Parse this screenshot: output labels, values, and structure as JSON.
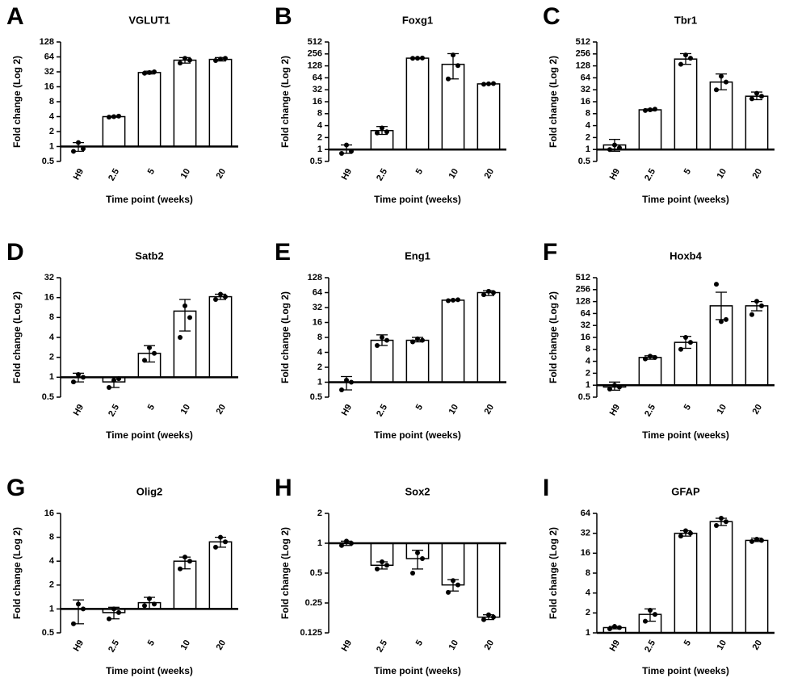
{
  "chart_data": [
    {
      "type": "bar",
      "panel": "A",
      "title": "VGLUT1",
      "x_label": "Time point (weeks)",
      "y_label": "Fold change (Log 2)",
      "log_base": 2,
      "baseline": 1,
      "color": "#ffffff",
      "categories": [
        "H9",
        "2.5",
        "5",
        "10",
        "20"
      ],
      "values": [
        1,
        4,
        31,
        55,
        57
      ],
      "err_lo": [
        0.8,
        3.9,
        29,
        48,
        53
      ],
      "err_hi": [
        1.2,
        4.1,
        33,
        62,
        62
      ],
      "points": [
        [
          0.8,
          1.2,
          0.9
        ],
        [
          3.9,
          4,
          4.1
        ],
        [
          30,
          31,
          32
        ],
        [
          48,
          60,
          55
        ],
        [
          54,
          58,
          60
        ]
      ],
      "ylim": [
        0.5,
        128
      ],
      "yticks": [
        0.5,
        1,
        2,
        4,
        8,
        16,
        32,
        64,
        128
      ]
    },
    {
      "type": "bar",
      "panel": "B",
      "title": "Foxg1",
      "x_label": "Time point (weeks)",
      "y_label": "Fold change (Log 2)",
      "log_base": 2,
      "baseline": 1,
      "color": "#ffffff",
      "categories": [
        "H9",
        "2.5",
        "5",
        "10",
        "20"
      ],
      "values": [
        1,
        3,
        200,
        140,
        45
      ],
      "err_lo": [
        0.8,
        2.4,
        195,
        60,
        44
      ],
      "err_hi": [
        1.3,
        3.8,
        205,
        260,
        46
      ],
      "points": [
        [
          0.8,
          1.3,
          0.9
        ],
        [
          2.6,
          3.5,
          2.8
        ],
        [
          198,
          200,
          202
        ],
        [
          60,
          240,
          130
        ],
        [
          44,
          45,
          46
        ]
      ],
      "ylim": [
        0.5,
        512
      ],
      "yticks": [
        0.5,
        1,
        2,
        4,
        8,
        16,
        32,
        64,
        128,
        256,
        512
      ]
    },
    {
      "type": "bar",
      "panel": "C",
      "title": "Tbr1",
      "x_label": "Time point (weeks)",
      "y_label": "Fold change (Log 2)",
      "log_base": 2,
      "baseline": 1,
      "color": "#ffffff",
      "categories": [
        "H9",
        "2.5",
        "5",
        "10",
        "20"
      ],
      "values": [
        1.3,
        10,
        190,
        50,
        22
      ],
      "err_lo": [
        0.9,
        9.5,
        140,
        32,
        18
      ],
      "err_hi": [
        1.8,
        10.5,
        260,
        80,
        28
      ],
      "points": [
        [
          1,
          1.3,
          1.1
        ],
        [
          9.6,
          10,
          10.4
        ],
        [
          140,
          240,
          200
        ],
        [
          32,
          70,
          50
        ],
        [
          19,
          26,
          22
        ]
      ],
      "ylim": [
        0.5,
        512
      ],
      "yticks": [
        0.5,
        1,
        2,
        4,
        8,
        16,
        32,
        64,
        128,
        256,
        512
      ]
    },
    {
      "type": "bar",
      "panel": "D",
      "title": "Satb2",
      "x_label": "Time point (weeks)",
      "y_label": "Fold change (Log 2)",
      "log_base": 2,
      "baseline": 1,
      "color": "#ffffff",
      "categories": [
        "H9",
        "2.5",
        "5",
        "10",
        "20"
      ],
      "values": [
        1,
        0.85,
        2.3,
        10,
        16.5
      ],
      "err_lo": [
        0.85,
        0.7,
        1.7,
        5,
        15
      ],
      "err_hi": [
        1.15,
        1,
        3,
        15,
        18
      ],
      "points": [
        [
          0.85,
          1.1,
          1
        ],
        [
          0.7,
          0.9,
          0.95
        ],
        [
          1.8,
          2.8,
          2.3
        ],
        [
          4,
          12,
          8
        ],
        [
          15,
          18,
          16.5
        ]
      ],
      "ylim": [
        0.5,
        32
      ],
      "yticks": [
        0.5,
        1,
        2,
        4,
        8,
        16,
        32
      ]
    },
    {
      "type": "bar",
      "panel": "E",
      "title": "Eng1",
      "x_label": "Time point (weeks)",
      "y_label": "Fold change (Log 2)",
      "log_base": 2,
      "baseline": 1,
      "color": "#ffffff",
      "categories": [
        "H9",
        "2.5",
        "5",
        "10",
        "20"
      ],
      "values": [
        1,
        7,
        7,
        45,
        64
      ],
      "err_lo": [
        0.7,
        5.5,
        6.5,
        44,
        56
      ],
      "err_hi": [
        1.3,
        9,
        8,
        46,
        70
      ],
      "points": [
        [
          0.7,
          1.1,
          1
        ],
        [
          5.5,
          8,
          7
        ],
        [
          6.5,
          7.5,
          7
        ],
        [
          44,
          45,
          46
        ],
        [
          58,
          68,
          64
        ]
      ],
      "ylim": [
        0.5,
        128
      ],
      "yticks": [
        0.5,
        1,
        2,
        4,
        8,
        16,
        32,
        64,
        128
      ]
    },
    {
      "type": "bar",
      "panel": "F",
      "title": "Hoxb4",
      "x_label": "Time point (weeks)",
      "y_label": "Fold change (Log 2)",
      "log_base": 2,
      "baseline": 1,
      "color": "#ffffff",
      "categories": [
        "H9",
        "2.5",
        "5",
        "10",
        "20"
      ],
      "values": [
        0.9,
        5,
        12,
        100,
        100
      ],
      "err_lo": [
        0.75,
        4.5,
        8.5,
        45,
        75
      ],
      "err_hi": [
        1.2,
        5.5,
        17,
        220,
        128
      ],
      "points": [
        [
          0.8,
          1,
          0.9
        ],
        [
          4.6,
          5.4,
          5
        ],
        [
          8,
          16,
          12
        ],
        [
          350,
          40,
          45
        ],
        [
          60,
          130,
          100
        ]
      ],
      "ylim": [
        0.5,
        512
      ],
      "yticks": [
        0.5,
        1,
        2,
        4,
        8,
        16,
        32,
        64,
        128,
        256,
        512
      ]
    },
    {
      "type": "bar",
      "panel": "G",
      "title": "Olig2",
      "x_label": "Time point (weeks)",
      "y_label": "Fold change (Log 2)",
      "log_base": 2,
      "baseline": 1,
      "color": "#ffffff",
      "categories": [
        "H9",
        "2.5",
        "5",
        "10",
        "20"
      ],
      "values": [
        1,
        0.9,
        1.2,
        4,
        7
      ],
      "err_lo": [
        0.65,
        0.75,
        1,
        3.2,
        6
      ],
      "err_hi": [
        1.3,
        1.05,
        1.4,
        4.5,
        8
      ],
      "points": [
        [
          0.65,
          1.15,
          1
        ],
        [
          0.75,
          1,
          0.9
        ],
        [
          1.1,
          1.35,
          1.15
        ],
        [
          3.2,
          4.5,
          4
        ],
        [
          6,
          8,
          7
        ]
      ],
      "ylim": [
        0.5,
        16
      ],
      "yticks": [
        0.5,
        1,
        2,
        4,
        8,
        16
      ]
    },
    {
      "type": "bar",
      "panel": "H",
      "title": "Sox2",
      "x_label": "Time point (weeks)",
      "y_label": "Fold change (Log 2)",
      "log_base": 2,
      "baseline": 1,
      "color": "#ffffff",
      "categories": [
        "H9",
        "2.5",
        "5",
        "10",
        "20"
      ],
      "values": [
        1,
        0.6,
        0.7,
        0.38,
        0.18
      ],
      "err_lo": [
        0.95,
        0.55,
        0.55,
        0.33,
        0.17
      ],
      "err_hi": [
        1.05,
        0.65,
        0.85,
        0.43,
        0.19
      ],
      "points": [
        [
          0.95,
          1.05,
          1
        ],
        [
          0.55,
          0.65,
          0.6
        ],
        [
          0.5,
          0.8,
          0.7
        ],
        [
          0.32,
          0.42,
          0.38
        ],
        [
          0.17,
          0.19,
          0.18
        ]
      ],
      "ylim": [
        0.125,
        2
      ],
      "yticks": [
        0.125,
        0.25,
        0.5,
        1,
        2
      ]
    },
    {
      "type": "bar",
      "panel": "I",
      "title": "GFAP",
      "x_label": "Time point (weeks)",
      "y_label": "Fold change (Log 2)",
      "log_base": 2,
      "baseline": 1,
      "color": "#ffffff",
      "categories": [
        "H9",
        "2.5",
        "5",
        "10",
        "20"
      ],
      "values": [
        1.2,
        1.9,
        32,
        48,
        25
      ],
      "err_lo": [
        1.15,
        1.5,
        29,
        42,
        24
      ],
      "err_hi": [
        1.25,
        2.3,
        35,
        54,
        27
      ],
      "points": [
        [
          1.15,
          1.25,
          1.2
        ],
        [
          1.5,
          2.2,
          1.9
        ],
        [
          29,
          35,
          32
        ],
        [
          42,
          54,
          48
        ],
        [
          24,
          26,
          25
        ]
      ],
      "ylim": [
        1,
        64
      ],
      "yticks": [
        1,
        2,
        4,
        8,
        16,
        32,
        64
      ]
    }
  ]
}
